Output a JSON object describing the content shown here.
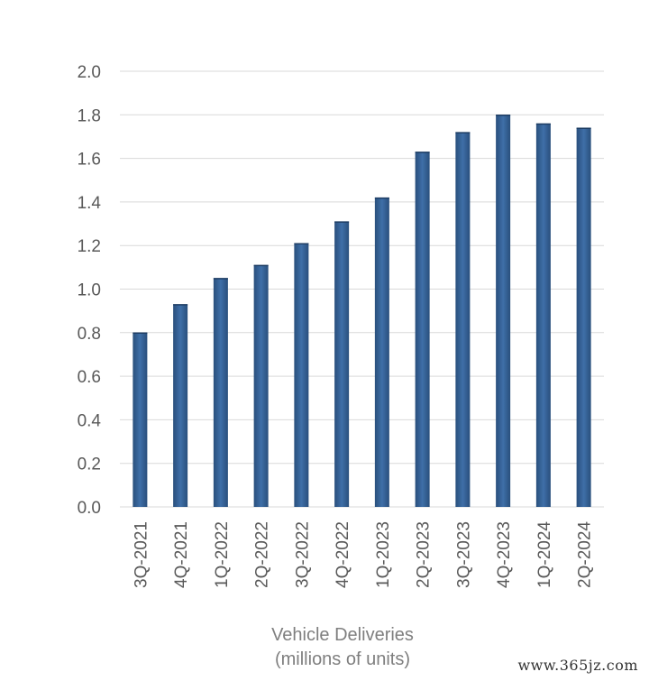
{
  "chart_data": {
    "type": "bar",
    "title": "",
    "xlabel": "Vehicle Deliveries",
    "xlabel_line2": "(millions of units)",
    "ylabel": "",
    "ylim": [
      0,
      2.0
    ],
    "yticks": [
      "0.0",
      "0.2",
      "0.4",
      "0.6",
      "0.8",
      "1.0",
      "1.2",
      "1.4",
      "1.6",
      "1.8",
      "2.0"
    ],
    "grid": true,
    "legend": "none",
    "bar_color": "#2f5b8c",
    "bar_color_light": "#3f6fa8",
    "grid_color": "#d9d9d9",
    "categories": [
      "3Q-2021",
      "4Q-2021",
      "1Q-2022",
      "2Q-2022",
      "3Q-2022",
      "4Q-2022",
      "1Q-2023",
      "2Q-2023",
      "3Q-2023",
      "4Q-2023",
      "1Q-2024",
      "2Q-2024"
    ],
    "values": [
      0.8,
      0.93,
      1.05,
      1.11,
      1.21,
      1.31,
      1.42,
      1.63,
      1.72,
      1.8,
      1.76,
      1.74
    ]
  },
  "watermark": "www.365jz.com"
}
